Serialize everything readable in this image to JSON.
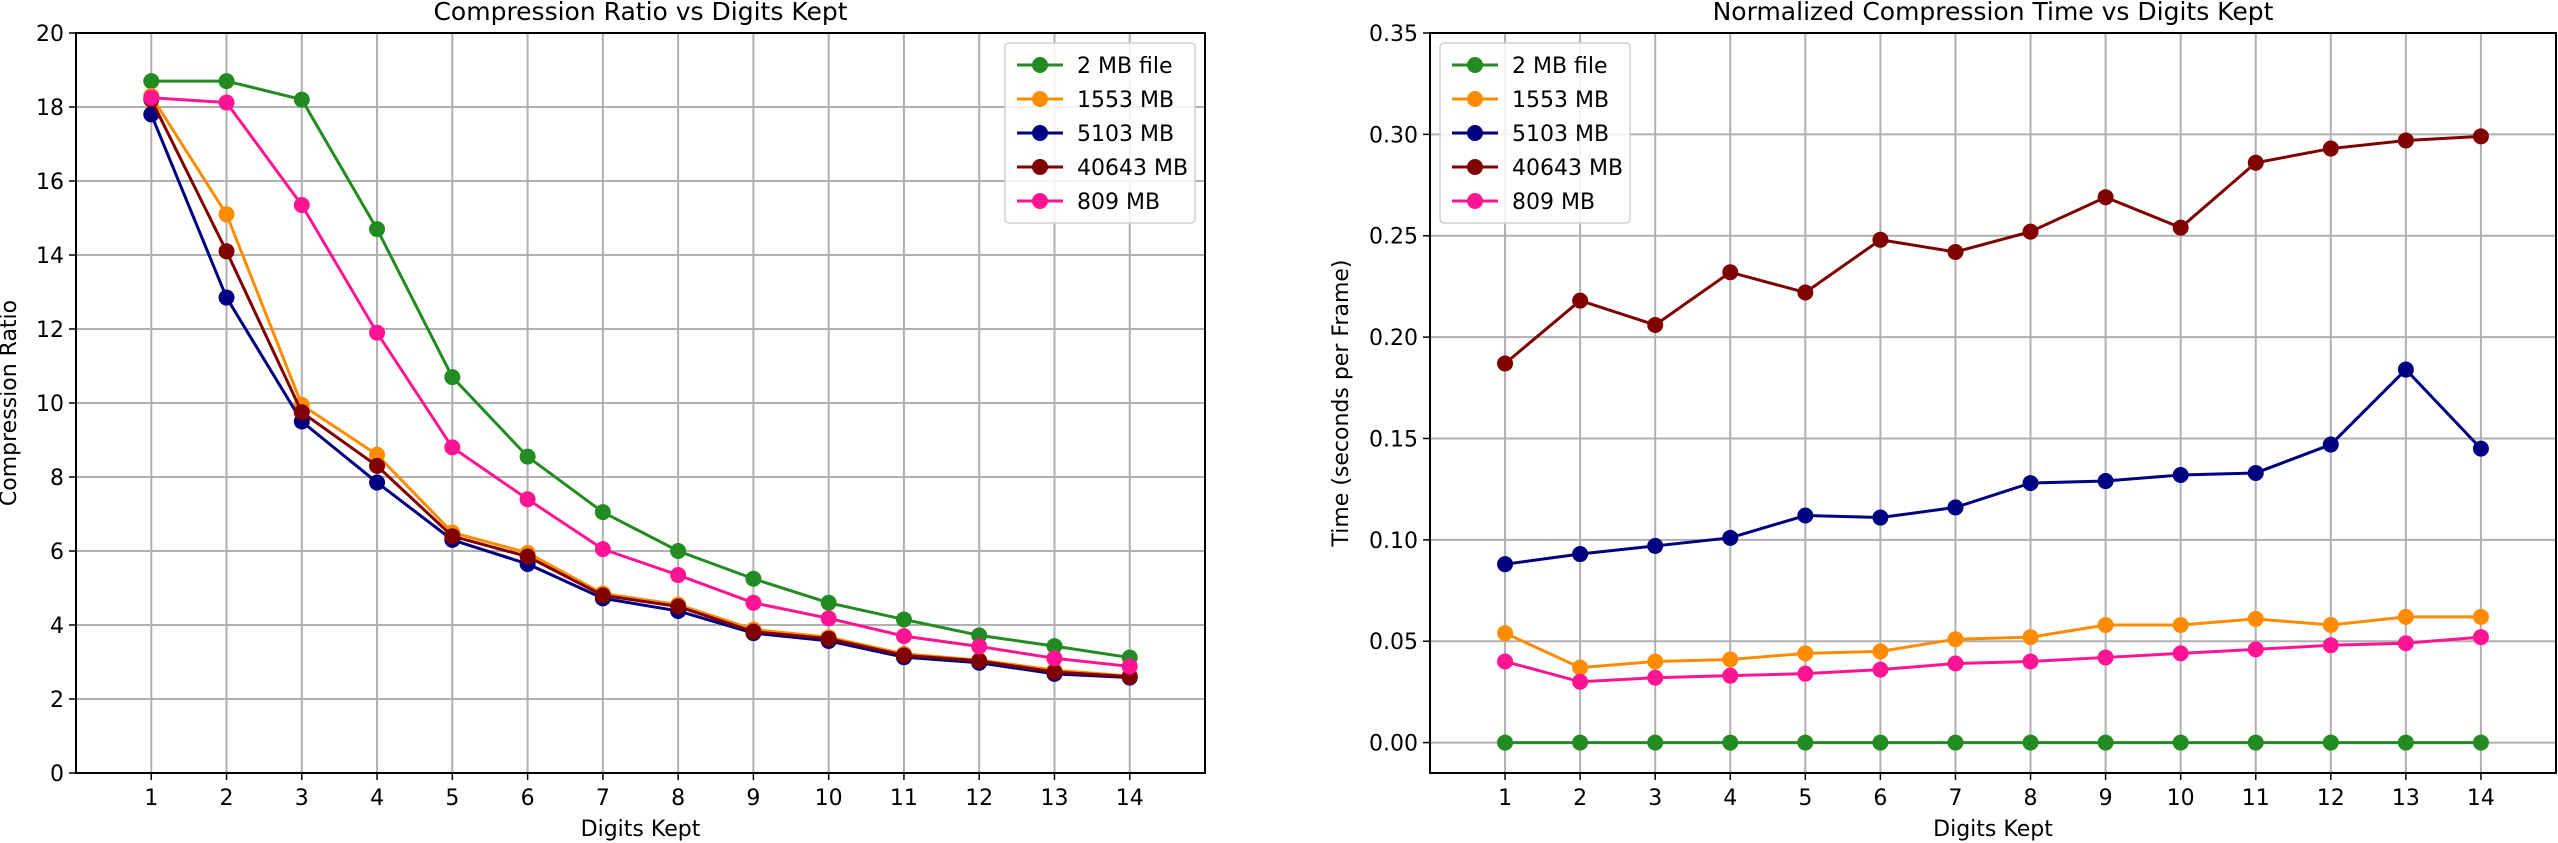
{
  "chart_data": [
    {
      "type": "line",
      "title": "Compression Ratio vs Digits Kept",
      "xlabel": "Digits Kept",
      "ylabel": "Compression Ratio",
      "x": [
        1,
        2,
        3,
        4,
        5,
        6,
        7,
        8,
        9,
        10,
        11,
        12,
        13,
        14
      ],
      "xlim": [
        0,
        15
      ],
      "ylim": [
        0,
        20
      ],
      "yticks": [
        0,
        2,
        4,
        6,
        8,
        10,
        12,
        14,
        16,
        18,
        20
      ],
      "ytick_labels": [
        "0",
        "2",
        "4",
        "6",
        "8",
        "10",
        "12",
        "14",
        "16",
        "18",
        "20"
      ],
      "xtick_labels": [
        "1",
        "2",
        "3",
        "4",
        "5",
        "6",
        "7",
        "8",
        "9",
        "10",
        "11",
        "12",
        "13",
        "14"
      ],
      "grid": true,
      "legend_position": "top-right",
      "series": [
        {
          "name": "2 MB file",
          "color": "#228B22",
          "values": [
            18.7,
            18.7,
            18.2,
            14.7,
            10.7,
            8.55,
            7.05,
            6.0,
            5.25,
            4.6,
            4.15,
            3.72,
            3.43,
            3.12
          ]
        },
        {
          "name": "1553 MB",
          "color": "#FF8C00",
          "values": [
            18.3,
            15.1,
            9.95,
            8.6,
            6.5,
            5.95,
            4.85,
            4.55,
            3.88,
            3.67,
            3.22,
            3.05,
            2.78,
            2.62
          ]
        },
        {
          "name": "5103 MB",
          "color": "#000080",
          "values": [
            17.8,
            12.85,
            9.5,
            7.85,
            6.3,
            5.65,
            4.72,
            4.38,
            3.78,
            3.57,
            3.13,
            2.98,
            2.68,
            2.58
          ]
        },
        {
          "name": "40643 MB",
          "color": "#800000",
          "values": [
            18.2,
            14.1,
            9.75,
            8.3,
            6.4,
            5.85,
            4.8,
            4.5,
            3.82,
            3.63,
            3.18,
            3.03,
            2.73,
            2.6
          ]
        },
        {
          "name": "809 MB",
          "color": "#FF1493",
          "values": [
            18.25,
            18.12,
            15.35,
            11.9,
            8.8,
            7.4,
            6.05,
            5.35,
            4.6,
            4.18,
            3.7,
            3.42,
            3.1,
            2.88
          ]
        }
      ]
    },
    {
      "type": "line",
      "title": "Normalized Compression Time vs Digits Kept",
      "xlabel": "Digits Kept",
      "ylabel": "Time (seconds per Frame)",
      "x": [
        1,
        2,
        3,
        4,
        5,
        6,
        7,
        8,
        9,
        10,
        11,
        12,
        13,
        14
      ],
      "xlim": [
        0,
        15
      ],
      "ylim": [
        -0.015,
        0.35
      ],
      "yticks": [
        0,
        0.05,
        0.1,
        0.15,
        0.2,
        0.25,
        0.3,
        0.35
      ],
      "ytick_labels": [
        "0.00",
        "0.05",
        "0.10",
        "0.15",
        "0.20",
        "0.25",
        "0.30",
        "0.35"
      ],
      "xtick_labels": [
        "1",
        "2",
        "3",
        "4",
        "5",
        "6",
        "7",
        "8",
        "9",
        "10",
        "11",
        "12",
        "13",
        "14"
      ],
      "grid": true,
      "legend_position": "top-left",
      "series": [
        {
          "name": "2 MB file",
          "color": "#228B22",
          "values": [
            0,
            0,
            0,
            0,
            0,
            0,
            0,
            0,
            0,
            0,
            0,
            0,
            0,
            0
          ]
        },
        {
          "name": "1553 MB",
          "color": "#FF8C00",
          "values": [
            0.054,
            0.037,
            0.04,
            0.041,
            0.044,
            0.045,
            0.051,
            0.052,
            0.058,
            0.058,
            0.061,
            0.058,
            0.062,
            0.062
          ]
        },
        {
          "name": "5103 MB",
          "color": "#000080",
          "values": [
            0.088,
            0.093,
            0.097,
            0.101,
            0.112,
            0.111,
            0.116,
            0.128,
            0.129,
            0.132,
            0.133,
            0.147,
            0.184,
            0.145
          ]
        },
        {
          "name": "40643 MB",
          "color": "#800000",
          "values": [
            0.187,
            0.218,
            0.206,
            0.232,
            0.222,
            0.248,
            0.242,
            0.252,
            0.269,
            0.254,
            0.286,
            0.293,
            0.297,
            0.299
          ]
        },
        {
          "name": "809 MB",
          "color": "#FF1493",
          "values": [
            0.04,
            0.03,
            0.032,
            0.033,
            0.034,
            0.036,
            0.039,
            0.04,
            0.042,
            0.044,
            0.046,
            0.048,
            0.049,
            0.052
          ]
        }
      ]
    }
  ]
}
